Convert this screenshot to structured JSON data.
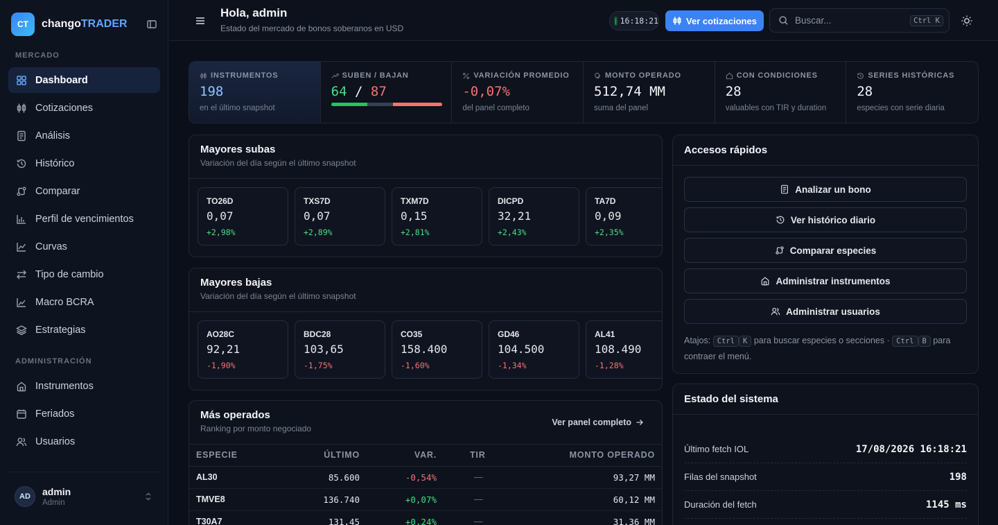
{
  "brand": {
    "logo": "CT",
    "name_a": "chango",
    "name_b": "TRADER"
  },
  "sidebar": {
    "section_market": "MERCADO",
    "market_items": [
      {
        "label": "Dashboard",
        "icon": "dashboard-icon"
      },
      {
        "label": "Cotizaciones",
        "icon": "quotes-icon"
      },
      {
        "label": "Análisis",
        "icon": "analysis-icon"
      },
      {
        "label": "Histórico",
        "icon": "history-icon"
      },
      {
        "label": "Comparar",
        "icon": "compare-icon"
      },
      {
        "label": "Perfil de vencimientos",
        "icon": "maturity-icon"
      },
      {
        "label": "Curvas",
        "icon": "curves-icon"
      },
      {
        "label": "Tipo de cambio",
        "icon": "exchange-icon"
      },
      {
        "label": "Macro BCRA",
        "icon": "macro-icon"
      },
      {
        "label": "Estrategias",
        "icon": "layers-icon"
      }
    ],
    "section_admin": "ADMINISTRACIÓN",
    "admin_items": [
      {
        "label": "Instrumentos",
        "icon": "home-icon"
      },
      {
        "label": "Feriados",
        "icon": "calendar-icon"
      },
      {
        "label": "Usuarios",
        "icon": "users-icon"
      }
    ],
    "user": {
      "initials": "AD",
      "name": "admin",
      "role": "Admin"
    }
  },
  "topbar": {
    "greeting": "Hola, admin",
    "subtitle": "Estado del mercado de bonos soberanos en USD",
    "clock": "16:18:21",
    "quotes_button": "Ver cotizaciones",
    "search_placeholder": "Buscar...",
    "search_shortcut": "Ctrl K"
  },
  "stats": [
    {
      "label": "INSTRUMENTOS",
      "value": "198",
      "sub": "en el último snapshot"
    },
    {
      "label": "SUBEN / BAJAN",
      "up": "64",
      "sep": "/",
      "down": "87",
      "up_fraction": 0.33,
      "down_fraction": 0.44
    },
    {
      "label": "VARIACIÓN PROMEDIO",
      "value": "-0,07%",
      "sub": "del panel completo"
    },
    {
      "label": "MONTO OPERADO",
      "value": "512,74 MM",
      "sub": "suma del panel"
    },
    {
      "label": "CON CONDICIONES",
      "value": "28",
      "sub": "valuables con TIR y duration"
    },
    {
      "label": "SERIES HISTÓRICAS",
      "value": "28",
      "sub": "especies con serie diaria"
    }
  ],
  "gainers": {
    "title": "Mayores subas",
    "subtitle": "Variación del día según el último snapshot",
    "items": [
      {
        "symbol": "TO26D",
        "price": "0,07",
        "change": "+2,98%"
      },
      {
        "symbol": "TXS7D",
        "price": "0,07",
        "change": "+2,89%"
      },
      {
        "symbol": "TXM7D",
        "price": "0,15",
        "change": "+2,81%"
      },
      {
        "symbol": "DICPD",
        "price": "32,21",
        "change": "+2,43%"
      },
      {
        "symbol": "TA7D",
        "price": "0,09",
        "change": "+2,35%"
      }
    ]
  },
  "losers": {
    "title": "Mayores bajas",
    "subtitle": "Variación del día según el último snapshot",
    "items": [
      {
        "symbol": "AO28C",
        "price": "92,21",
        "change": "-1,90%"
      },
      {
        "symbol": "BDC28",
        "price": "103,65",
        "change": "-1,75%"
      },
      {
        "symbol": "CO35",
        "price": "158.400",
        "change": "-1,60%"
      },
      {
        "symbol": "GD46",
        "price": "104.500",
        "change": "-1,34%"
      },
      {
        "symbol": "AL41",
        "price": "108.490",
        "change": "-1,28%"
      }
    ]
  },
  "most_traded": {
    "title": "Más operados",
    "subtitle": "Ranking por monto negociado",
    "link": "Ver panel completo",
    "columns": [
      "ESPECIE",
      "ÚLTIMO",
      "VAR.",
      "TIR",
      "MONTO OPERADO"
    ],
    "rows": [
      {
        "symbol": "AL30",
        "last": "85.600",
        "var": "-0,54%",
        "tir": "—",
        "amount": "93,27 MM"
      },
      {
        "symbol": "TMVE8",
        "last": "136.740",
        "var": "+0,07%",
        "tir": "—",
        "amount": "60,12 MM"
      },
      {
        "symbol": "T30A7",
        "last": "131,45",
        "var": "+0,24%",
        "tir": "—",
        "amount": "31,36 MM"
      }
    ]
  },
  "quick_access": {
    "title": "Accesos rápidos",
    "buttons": [
      {
        "label": "Analizar un bono",
        "icon": "document-icon"
      },
      {
        "label": "Ver histórico diario",
        "icon": "history-icon"
      },
      {
        "label": "Comparar especies",
        "icon": "compare-icon"
      },
      {
        "label": "Administrar instrumentos",
        "icon": "home-icon"
      },
      {
        "label": "Administrar usuarios",
        "icon": "users-icon"
      }
    ],
    "shortcuts_prefix": "Atajos:",
    "kbd_ctrl": "Ctrl",
    "kbd_k": "K",
    "shortcuts_mid": "para buscar especies o secciones ·",
    "kbd_b": "B",
    "shortcuts_suffix": "para contraer el menú."
  },
  "system": {
    "title": "Estado del sistema",
    "rows": [
      {
        "label": "Último fetch IOL",
        "value": "17/08/2026 16:18:21"
      },
      {
        "label": "Filas del snapshot",
        "value": "198"
      },
      {
        "label": "Duración del fetch",
        "value": "1145 ms"
      }
    ]
  },
  "colors": {
    "accent": "#3b82f6",
    "positive": "#4ade80",
    "negative": "#f87171",
    "background": "#0b0f19"
  }
}
